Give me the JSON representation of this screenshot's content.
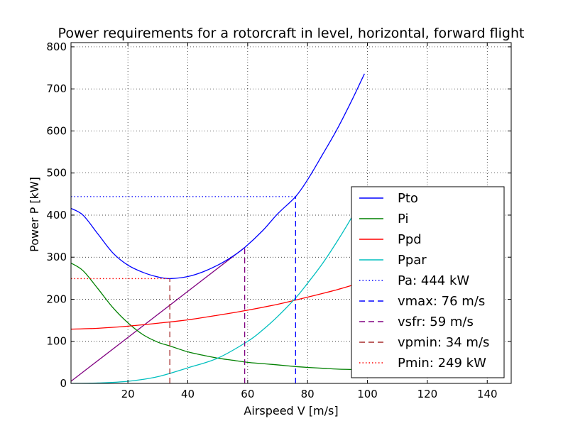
{
  "chart_data": {
    "type": "line",
    "title": "Power requirements for a rotorcraft in level, horizontal, forward flight",
    "xlabel": "Airspeed V [m/s]",
    "ylabel": "Power P [kW]",
    "xlim": [
      1,
      148
    ],
    "ylim": [
      0,
      810
    ],
    "xticks": [
      20,
      40,
      60,
      80,
      100,
      120,
      140
    ],
    "yticks": [
      0,
      100,
      200,
      300,
      400,
      500,
      600,
      700,
      800
    ],
    "grid": true,
    "legend_position": "lower-right",
    "series": [
      {
        "name": "Pto",
        "color": "#0000ff",
        "style": "solid",
        "x": [
          1,
          5,
          10,
          15,
          20,
          25,
          30,
          34,
          40,
          45,
          50,
          55,
          59,
          65,
          70,
          76,
          80,
          85,
          90,
          95,
          99
        ],
        "y": [
          416,
          400,
          355,
          310,
          281,
          264,
          253,
          249,
          254,
          265,
          281,
          302,
          323,
          363,
          403,
          444,
          484,
          544,
          606,
          676,
          736
        ]
      },
      {
        "name": "Pi",
        "color": "#008000",
        "style": "solid",
        "x": [
          1,
          5,
          10,
          15,
          20,
          25,
          30,
          34,
          40,
          45,
          50,
          55,
          60,
          65,
          70,
          76,
          80,
          85,
          90,
          95,
          99
        ],
        "y": [
          286,
          268,
          225,
          180,
          144,
          116,
          98,
          89,
          75,
          67,
          60,
          55,
          50,
          47,
          44,
          40,
          38,
          36,
          34,
          33,
          32
        ]
      },
      {
        "name": "Ppd",
        "color": "#ff0000",
        "style": "solid",
        "x": [
          1,
          10,
          20,
          30,
          40,
          50,
          60,
          70,
          76,
          80,
          90,
          99
        ],
        "y": [
          129,
          131,
          136,
          143,
          151,
          162,
          174,
          188,
          198,
          205,
          223,
          242
        ]
      },
      {
        "name": "Ppar",
        "color": "#00bfbf",
        "style": "solid",
        "x": [
          1,
          10,
          20,
          30,
          40,
          50,
          60,
          65,
          70,
          76,
          80,
          85,
          90,
          95,
          99
        ],
        "y": [
          0,
          1,
          5,
          16,
          37,
          60,
          100,
          127,
          159,
          203,
          238,
          285,
          339,
          398,
          452
        ]
      },
      {
        "name": "Pa: 444 kW",
        "color": "#0000ff",
        "style": "dotted",
        "x": [
          1,
          76
        ],
        "y": [
          444,
          444
        ]
      },
      {
        "name": "vmax: 76 m/s",
        "color": "#0000ff",
        "style": "dashed",
        "x": [
          76,
          76
        ],
        "y": [
          0,
          444
        ]
      },
      {
        "name": "vsfr: 59 m/s",
        "color": "#800080",
        "style": "dashed",
        "x": [
          59,
          59
        ],
        "y": [
          0,
          323
        ]
      },
      {
        "name": "vpmin: 34 m/s",
        "color": "#a52a2a",
        "style": "dashed",
        "x": [
          34,
          34
        ],
        "y": [
          0,
          249
        ]
      },
      {
        "name": "Pmin: 249 kW",
        "color": "#ff0000",
        "style": "dotted",
        "x": [
          1,
          34
        ],
        "y": [
          249,
          249
        ]
      }
    ],
    "extra_lines": [
      {
        "color": "#800080",
        "style": "solid",
        "x": [
          1,
          59
        ],
        "y": [
          5,
          323
        ]
      }
    ]
  }
}
